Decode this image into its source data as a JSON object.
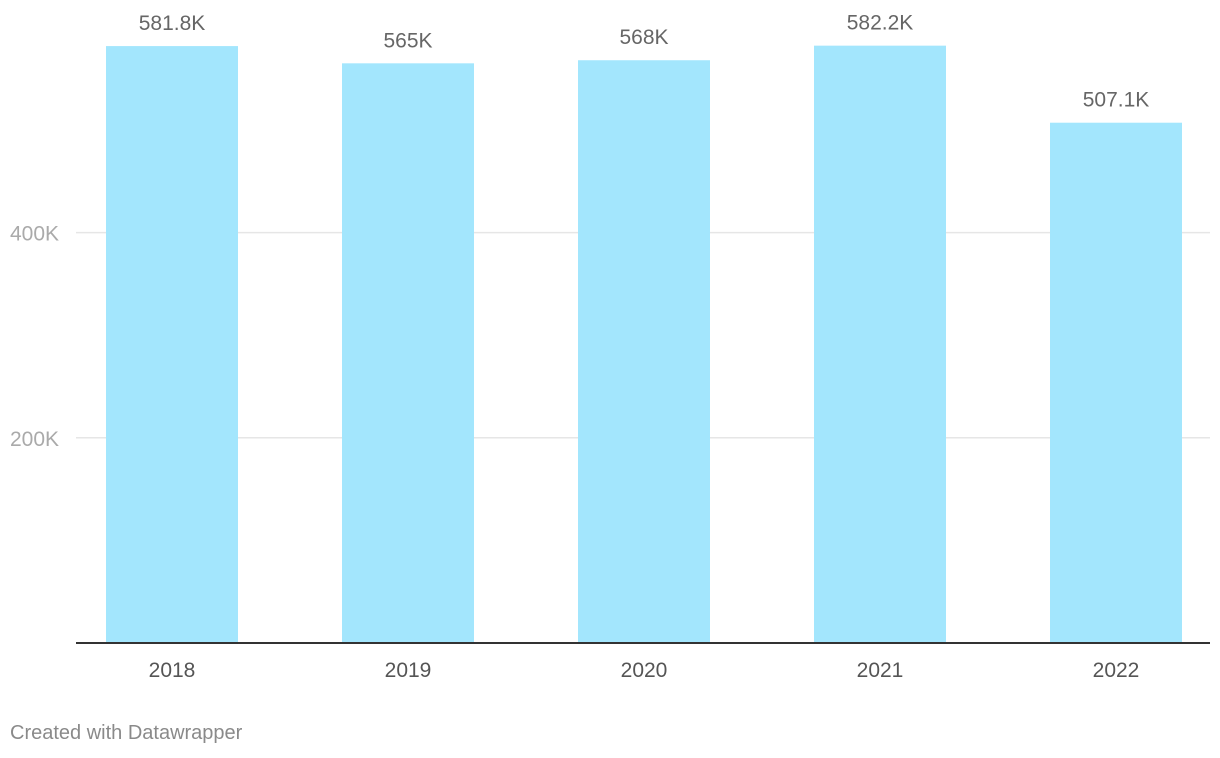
{
  "chart_data": {
    "type": "bar",
    "categories": [
      "2018",
      "2019",
      "2020",
      "2021",
      "2022"
    ],
    "values": [
      581800,
      565000,
      568000,
      582200,
      507100
    ],
    "value_labels": [
      "581.8K",
      "565K",
      "568K",
      "582.2K",
      "507.1K"
    ],
    "y_ticks": [
      {
        "value": 200000,
        "label": "200K"
      },
      {
        "value": 400000,
        "label": "400K"
      }
    ],
    "ylim": [
      0,
      620000
    ],
    "grid": true,
    "bar_color": "#a3e6fd",
    "title": "",
    "xlabel": "",
    "ylabel": ""
  },
  "footer": {
    "credit": "Created with Datawrapper"
  }
}
